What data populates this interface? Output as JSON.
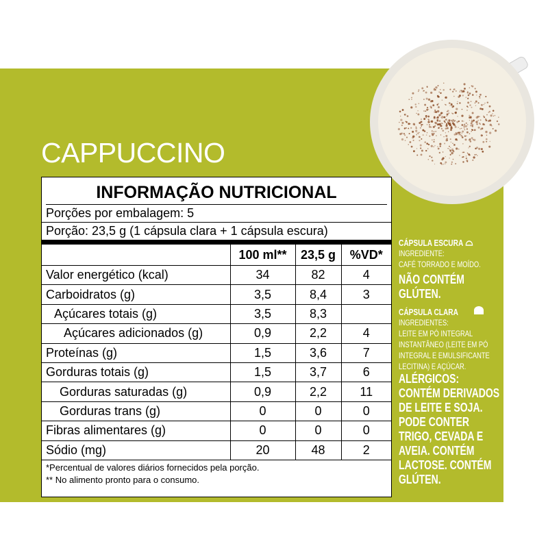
{
  "title": "CAPPUCCINO",
  "table": {
    "heading": "INFORMAÇÃO NUTRICIONAL",
    "servings": [
      "Porções por embalagem: 5",
      "Porção: 23,5 g (1 cápsula clara + 1 cápsula escura)"
    ],
    "columns": [
      "100 ml**",
      "23,5 g",
      "%VD*"
    ],
    "rows": [
      [
        "Valor energético (kcal)",
        "34",
        "82",
        "4"
      ],
      [
        "Carboidratos (g)",
        "3,5",
        "8,4",
        "3"
      ],
      [
        "Açúcares totais (g)",
        "3,5",
        "8,3",
        null
      ],
      [
        "Açúcares adicionados (g)",
        "0,9",
        "2,2",
        "4"
      ],
      [
        "Proteínas (g)",
        "1,5",
        "3,6",
        "7"
      ],
      [
        "Gorduras totais (g)",
        "1,5",
        "3,7",
        "6"
      ],
      [
        "Gorduras saturadas (g)",
        "0,9",
        "2,2",
        "11"
      ],
      [
        "Gorduras trans (g)",
        "0",
        "0",
        "0"
      ],
      [
        "Fibras alimentares (g)",
        "0",
        "0",
        "0"
      ],
      [
        "Sódio (mg)",
        "20",
        "48",
        "2"
      ]
    ],
    "footnotes": [
      "*Percentual de valores diários fornecidos pela porção.",
      "** No alimento pronto para o consumo."
    ]
  },
  "sidebar": {
    "dark_capsule": {
      "label": "CÁPSULA ESCURA",
      "ingredients_label": "INGREDIENTE:",
      "ingredients": "CAFÉ TORRADO E MOÍDO.",
      "gluten": "NÃO CONTÉM GLÚTEN."
    },
    "light_capsule": {
      "label": "CÁPSULA CLARA",
      "ingredients_label": "INGREDIENTES:",
      "ingredients": "LEITE EM PÓ INTEGRAL INSTANTÂNEO (LEITE EM PÓ INTEGRAL E EMULSIFICANTE LECITINA) E AÇÚCAR.",
      "allergens": "ALÉRGICOS: CONTÉM DERIVADOS DE LEITE E SOJA. PODE CONTER TRIGO, CEVADA E AVEIA. CONTÉM LACTOSE. CONTÉM GLÚTEN."
    }
  }
}
